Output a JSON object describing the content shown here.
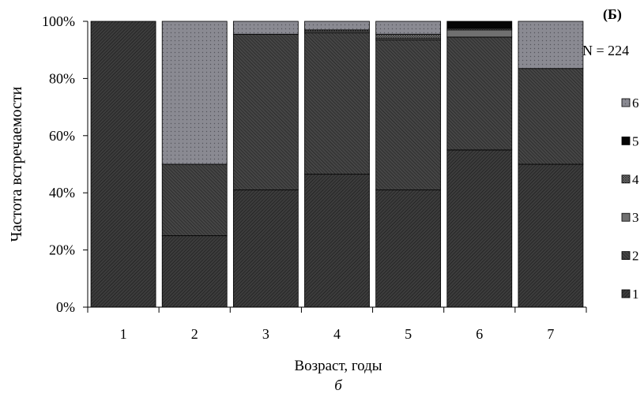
{
  "chart_data": {
    "type": "bar",
    "stacked": true,
    "panel_label": "(Б)",
    "n_label": "N = 224",
    "ylabel": "Частота встречаемости",
    "xlabel": "Возраст, годы",
    "caption": "б",
    "ylim": [
      0,
      100
    ],
    "y_ticks": [
      {
        "value": 0,
        "label": "0%"
      },
      {
        "value": 20,
        "label": "20%"
      },
      {
        "value": 40,
        "label": "40%"
      },
      {
        "value": 60,
        "label": "60%"
      },
      {
        "value": 80,
        "label": "80%"
      },
      {
        "value": 100,
        "label": "100%"
      }
    ],
    "categories": [
      "1",
      "2",
      "3",
      "4",
      "5",
      "6",
      "7"
    ],
    "series": [
      {
        "name": "1",
        "values": [
          100,
          25,
          41,
          46.5,
          41,
          55,
          50
        ]
      },
      {
        "name": "2",
        "values": [
          0,
          25,
          54.5,
          49.5,
          52.5,
          39.5,
          33.5
        ]
      },
      {
        "name": "3",
        "values": [
          0,
          0,
          0,
          0.5,
          0.5,
          2.5,
          0
        ]
      },
      {
        "name": "4",
        "values": [
          0,
          0,
          0,
          0.5,
          1.5,
          0.5,
          0
        ]
      },
      {
        "name": "5",
        "values": [
          0,
          0,
          0,
          0,
          0,
          2.5,
          0
        ]
      },
      {
        "name": "6",
        "values": [
          0,
          50,
          4.5,
          3,
          4.5,
          0,
          16.5
        ]
      }
    ],
    "legend_position": "right",
    "colors": {
      "s1": "#3c3c3c",
      "s2": "#454545",
      "s3": "#707070",
      "s4": "#8a8a8a",
      "s5": "#050505",
      "s6": "#8a8a92",
      "dots": "#55555c"
    },
    "grid": false
  }
}
